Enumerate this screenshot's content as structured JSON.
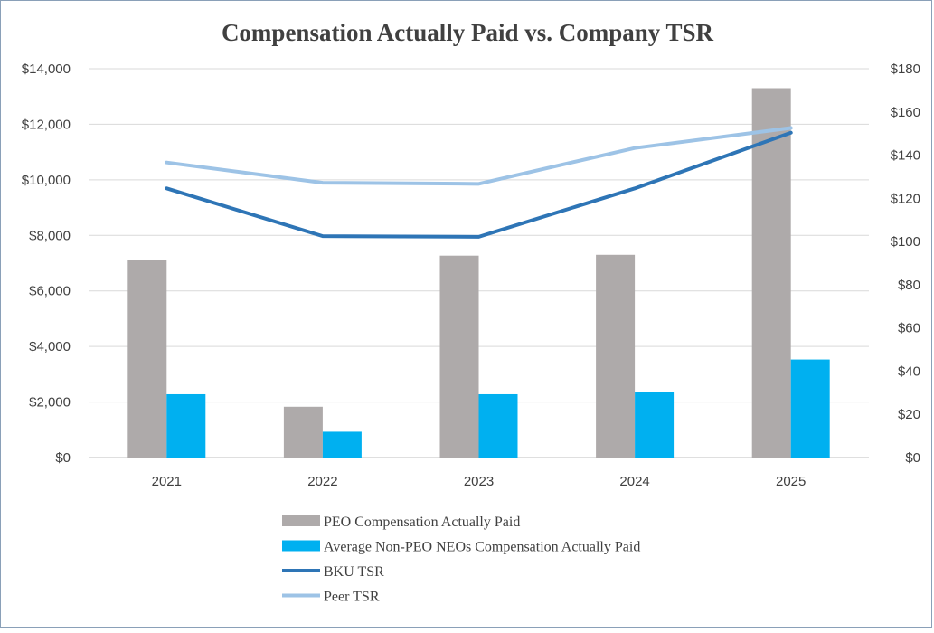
{
  "chart_data": {
    "type": "bar",
    "title": "Compensation Actually Paid vs. Company TSR",
    "categories": [
      "2021",
      "2022",
      "2023",
      "2024",
      "2025"
    ],
    "left_axis": {
      "ylim": [
        0,
        14000
      ],
      "ticks": [
        0,
        2000,
        4000,
        6000,
        8000,
        10000,
        12000,
        14000
      ],
      "tick_labels": [
        "$0",
        "$2,000",
        "$4,000",
        "$6,000",
        "$8,000",
        "$10,000",
        "$12,000",
        "$14,000"
      ]
    },
    "right_axis": {
      "ylim": [
        0,
        180
      ],
      "ticks": [
        0,
        20,
        40,
        60,
        80,
        100,
        120,
        140,
        160,
        180
      ],
      "tick_labels": [
        "$0",
        "$20",
        "$40",
        "$60",
        "$80",
        "$100",
        "$120",
        "$140",
        "$160",
        "$180"
      ]
    },
    "series": [
      {
        "name": "PEO Compensation Actually Paid",
        "kind": "bar",
        "axis": "left",
        "color": "#aeaaaa",
        "values": [
          7100,
          1830,
          7270,
          7300,
          13300
        ]
      },
      {
        "name": "Average Non-PEO NEOs Compensation Actually Paid",
        "kind": "bar",
        "axis": "left",
        "color": "#00b0f0",
        "values": [
          2280,
          930,
          2280,
          2350,
          3530
        ]
      },
      {
        "name": "BKU TSR",
        "kind": "line",
        "axis": "right",
        "color": "#2e75b6",
        "values": [
          124.6,
          102.5,
          102.2,
          124.6,
          150.4
        ]
      },
      {
        "name": "Peer TSR",
        "kind": "line",
        "axis": "right",
        "color": "#9dc3e6",
        "values": [
          136.6,
          127.2,
          126.7,
          143.3,
          152.6
        ]
      }
    ],
    "grid": true,
    "legend_position": "bottom"
  }
}
